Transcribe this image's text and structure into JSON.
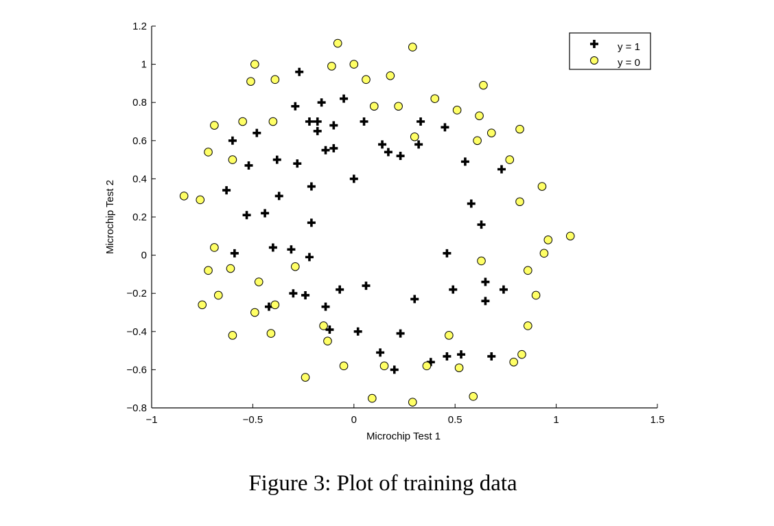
{
  "chart_data": {
    "type": "scatter",
    "xlabel": "Microchip Test 1",
    "ylabel": "Microchip Test 2",
    "xlim": [
      -1,
      1.5
    ],
    "ylim": [
      -0.8,
      1.2
    ],
    "xticks": [
      -1,
      -0.5,
      0,
      0.5,
      1,
      1.5
    ],
    "xtick_labels": [
      "−1",
      "−0.5",
      "0",
      "0.5",
      "1",
      "1.5"
    ],
    "yticks": [
      -0.8,
      -0.6,
      -0.4,
      -0.2,
      0,
      0.2,
      0.4,
      0.6,
      0.8,
      1,
      1.2
    ],
    "ytick_labels": [
      "−0.8",
      "−0.6",
      "−0.4",
      "−0.2",
      "0",
      "0.2",
      "0.4",
      "0.6",
      "0.8",
      "1",
      "1.2"
    ],
    "grid": false,
    "legend_position": "top-right",
    "series": [
      {
        "name": "y = 1",
        "marker": "plus",
        "color": "#000000",
        "points": [
          [
            -0.27,
            0.96
          ],
          [
            -0.29,
            0.78
          ],
          [
            -0.16,
            0.8
          ],
          [
            -0.05,
            0.82
          ],
          [
            -0.22,
            0.7
          ],
          [
            -0.18,
            0.7
          ],
          [
            -0.1,
            0.68
          ],
          [
            0.05,
            0.7
          ],
          [
            0.33,
            0.7
          ],
          [
            0.45,
            0.67
          ],
          [
            -0.6,
            0.6
          ],
          [
            -0.48,
            0.64
          ],
          [
            -0.18,
            0.65
          ],
          [
            0.14,
            0.58
          ],
          [
            0.32,
            0.58
          ],
          [
            -0.1,
            0.56
          ],
          [
            -0.14,
            0.55
          ],
          [
            0.17,
            0.54
          ],
          [
            0.23,
            0.52
          ],
          [
            -0.38,
            0.5
          ],
          [
            -0.52,
            0.47
          ],
          [
            -0.28,
            0.48
          ],
          [
            0.55,
            0.49
          ],
          [
            0.73,
            0.45
          ],
          [
            0.0,
            0.4
          ],
          [
            -0.21,
            0.36
          ],
          [
            -0.63,
            0.34
          ],
          [
            -0.37,
            0.31
          ],
          [
            0.58,
            0.27
          ],
          [
            -0.53,
            0.21
          ],
          [
            -0.44,
            0.22
          ],
          [
            -0.21,
            0.17
          ],
          [
            0.63,
            0.16
          ],
          [
            -0.59,
            0.01
          ],
          [
            -0.4,
            0.04
          ],
          [
            -0.31,
            0.03
          ],
          [
            0.46,
            0.01
          ],
          [
            -0.22,
            -0.01
          ],
          [
            0.65,
            -0.14
          ],
          [
            -0.3,
            -0.2
          ],
          [
            -0.24,
            -0.21
          ],
          [
            0.06,
            -0.16
          ],
          [
            -0.07,
            -0.18
          ],
          [
            0.49,
            -0.18
          ],
          [
            0.74,
            -0.18
          ],
          [
            0.3,
            -0.23
          ],
          [
            0.65,
            -0.24
          ],
          [
            -0.42,
            -0.27
          ],
          [
            -0.14,
            -0.27
          ],
          [
            -0.12,
            -0.39
          ],
          [
            0.02,
            -0.4
          ],
          [
            0.23,
            -0.41
          ],
          [
            0.13,
            -0.51
          ],
          [
            0.46,
            -0.53
          ],
          [
            0.53,
            -0.52
          ],
          [
            0.68,
            -0.53
          ],
          [
            0.38,
            -0.56
          ],
          [
            0.2,
            -0.6
          ]
        ]
      },
      {
        "name": "y = 0",
        "marker": "circle",
        "color": "#ffff66",
        "points": [
          [
            -0.08,
            1.11
          ],
          [
            0.29,
            1.09
          ],
          [
            -0.49,
            1.0
          ],
          [
            -0.11,
            0.99
          ],
          [
            0.0,
            1.0
          ],
          [
            -0.51,
            0.91
          ],
          [
            -0.39,
            0.92
          ],
          [
            0.06,
            0.92
          ],
          [
            0.18,
            0.94
          ],
          [
            0.64,
            0.89
          ],
          [
            0.4,
            0.82
          ],
          [
            0.1,
            0.78
          ],
          [
            0.22,
            0.78
          ],
          [
            0.51,
            0.76
          ],
          [
            0.62,
            0.73
          ],
          [
            -0.69,
            0.68
          ],
          [
            -0.55,
            0.7
          ],
          [
            -0.4,
            0.7
          ],
          [
            0.82,
            0.66
          ],
          [
            0.68,
            0.64
          ],
          [
            0.3,
            0.62
          ],
          [
            0.61,
            0.6
          ],
          [
            -0.72,
            0.54
          ],
          [
            -0.6,
            0.5
          ],
          [
            0.77,
            0.5
          ],
          [
            0.93,
            0.36
          ],
          [
            -0.84,
            0.31
          ],
          [
            -0.76,
            0.29
          ],
          [
            0.82,
            0.28
          ],
          [
            1.07,
            0.1
          ],
          [
            0.96,
            0.08
          ],
          [
            0.94,
            0.01
          ],
          [
            -0.69,
            0.04
          ],
          [
            -0.61,
            -0.07
          ],
          [
            0.63,
            -0.03
          ],
          [
            -0.29,
            -0.06
          ],
          [
            -0.72,
            -0.08
          ],
          [
            0.86,
            -0.08
          ],
          [
            -0.47,
            -0.14
          ],
          [
            -0.67,
            -0.21
          ],
          [
            0.9,
            -0.21
          ],
          [
            -0.75,
            -0.26
          ],
          [
            -0.39,
            -0.26
          ],
          [
            -0.49,
            -0.3
          ],
          [
            0.86,
            -0.37
          ],
          [
            -0.15,
            -0.37
          ],
          [
            -0.6,
            -0.42
          ],
          [
            -0.41,
            -0.41
          ],
          [
            0.47,
            -0.42
          ],
          [
            -0.13,
            -0.45
          ],
          [
            0.83,
            -0.52
          ],
          [
            0.79,
            -0.56
          ],
          [
            -0.05,
            -0.58
          ],
          [
            0.15,
            -0.58
          ],
          [
            0.36,
            -0.58
          ],
          [
            0.52,
            -0.59
          ],
          [
            -0.24,
            -0.64
          ],
          [
            0.09,
            -0.75
          ],
          [
            0.59,
            -0.74
          ],
          [
            0.29,
            -0.77
          ]
        ]
      }
    ]
  },
  "caption": "Figure 3: Plot of training data"
}
